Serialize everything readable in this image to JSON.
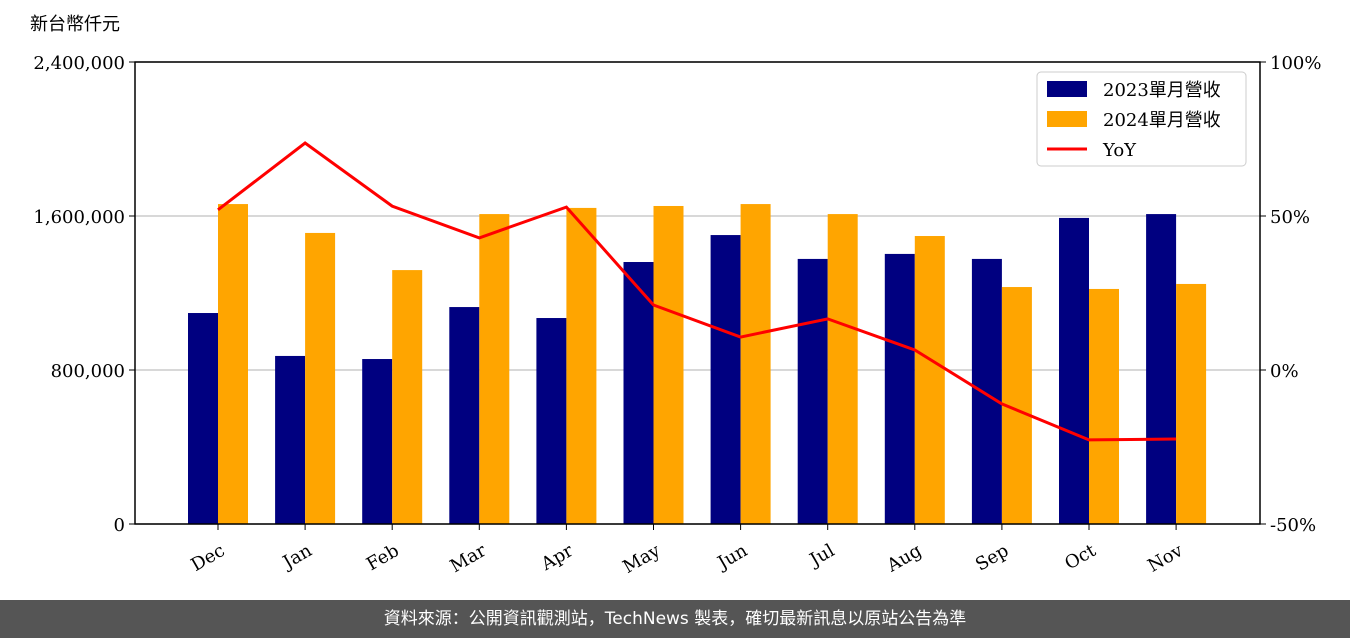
{
  "chart_data": {
    "type": "bar",
    "unit_label": "新台幣仟元",
    "categories": [
      "Dec",
      "Jan",
      "Feb",
      "Mar",
      "Apr",
      "May",
      "Jun",
      "Jul",
      "Aug",
      "Sep",
      "Oct",
      "Nov"
    ],
    "series": [
      {
        "name": "2023單月營收",
        "color": "#000080",
        "values": [
          1096000,
          873000,
          857000,
          1127000,
          1070000,
          1361000,
          1501000,
          1377000,
          1403000,
          1377000,
          1590000,
          1610000
        ]
      },
      {
        "name": "2024單月營收",
        "color": "#ffa500",
        "values": [
          1662000,
          1512000,
          1319000,
          1610000,
          1642000,
          1652000,
          1662000,
          1610000,
          1496000,
          1231000,
          1221000,
          1247000
        ]
      },
      {
        "name": "YoY",
        "color": "#ff0000",
        "type": "line",
        "axis": "y2",
        "values": [
          52,
          73.7,
          53.2,
          42.9,
          52.9,
          21.1,
          10.7,
          16.6,
          6.5,
          -11,
          -22.7,
          -22.4
        ]
      }
    ],
    "ylim": [
      0,
      2400000
    ],
    "yticks": [
      0,
      {
        "value": 800000,
        "label": "800,000"
      },
      {
        "value": 1600000,
        "label": "1,600,000"
      },
      {
        "value": 2400000,
        "label": "2,400,000"
      }
    ],
    "y2lim": [
      -50,
      100
    ],
    "y2ticks": [
      {
        "value": -50,
        "label": "-50%"
      },
      {
        "value": 0,
        "label": "0%"
      },
      {
        "value": 50,
        "label": "50%"
      },
      {
        "value": 100,
        "label": "100%"
      }
    ],
    "grid": true,
    "legend": "upper right"
  },
  "footer": "資料來源：公開資訊觀測站，TechNews 製表，確切最新訊息以原站公告為準"
}
